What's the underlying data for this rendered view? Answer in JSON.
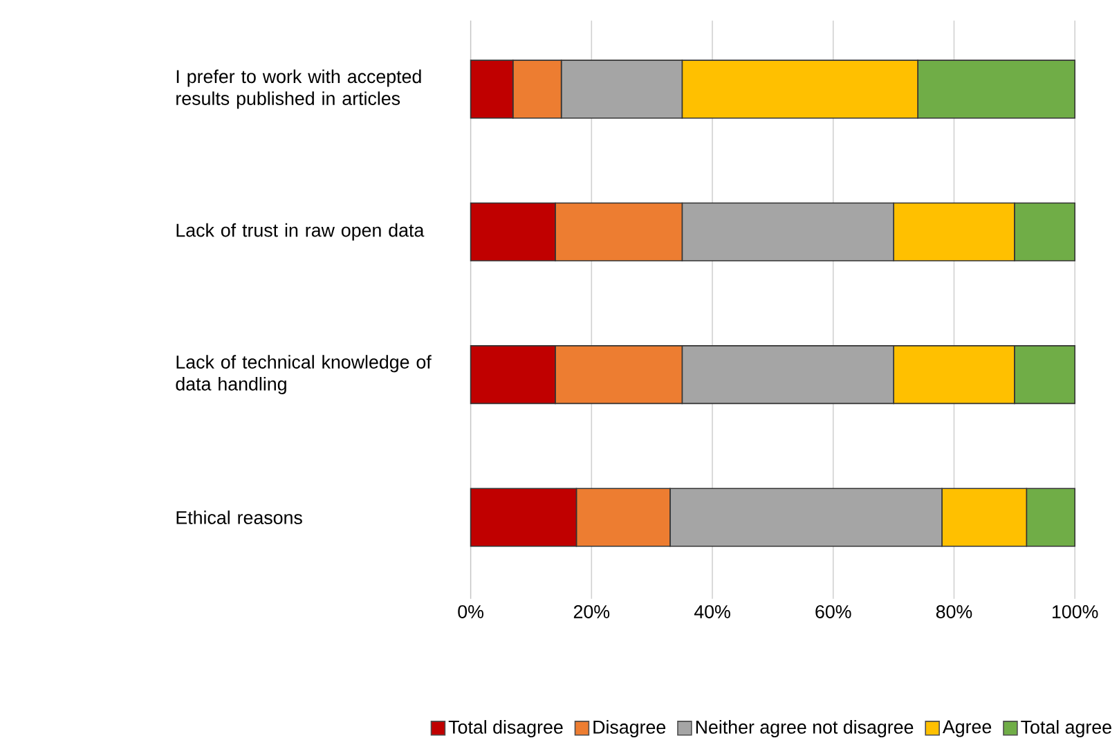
{
  "chart_data": {
    "type": "bar",
    "orientation": "horizontal",
    "stacked": true,
    "categories": [
      "I prefer to work with accepted results published in articles",
      "Lack of trust in raw open data",
      "Lack of technical knowledge of data handling",
      "Ethical reasons"
    ],
    "series": [
      {
        "name": "Total disagree",
        "color": "#c00000",
        "values": [
          7,
          14,
          14,
          17.5
        ]
      },
      {
        "name": "Disagree",
        "color": "#ed7d31",
        "values": [
          8,
          21,
          21,
          15.5
        ]
      },
      {
        "name": "Neither agree not disagree",
        "color": "#a5a5a5",
        "values": [
          20,
          35,
          35,
          45
        ]
      },
      {
        "name": "Agree",
        "color": "#ffc000",
        "values": [
          39,
          20,
          20,
          14
        ]
      },
      {
        "name": "Total agree",
        "color": "#70ad47",
        "values": [
          26,
          10,
          10,
          8
        ]
      }
    ],
    "xlim": [
      0,
      100
    ],
    "xticks": [
      {
        "value": 0,
        "label": "0%"
      },
      {
        "value": 20,
        "label": "20%"
      },
      {
        "value": 40,
        "label": "40%"
      },
      {
        "value": 60,
        "label": "60%"
      },
      {
        "value": 80,
        "label": "80%"
      },
      {
        "value": 100,
        "label": "100%"
      }
    ],
    "grid": "x",
    "legend": "bottom"
  }
}
